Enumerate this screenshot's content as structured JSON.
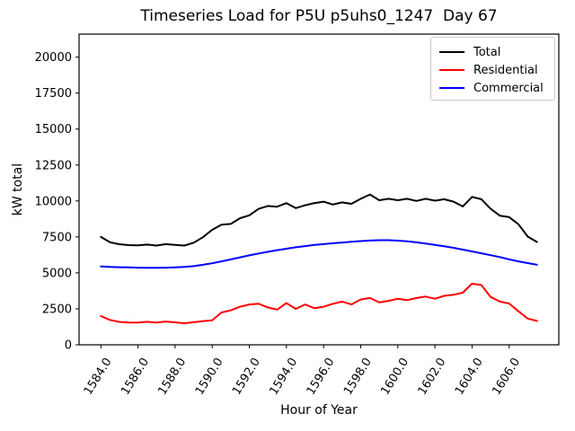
{
  "chart_data": {
    "type": "line",
    "title": "Timeseries Load for P5U p5uhs0_1247  Day 67",
    "xlabel": "Hour of Year",
    "ylabel": "kW total",
    "xlim": [
      1582.825,
      1608.675
    ],
    "ylim": [
      0,
      21600
    ],
    "grid": false,
    "xticks": [
      1584,
      1586,
      1588,
      1590,
      1592,
      1594,
      1596,
      1598,
      1600,
      1602,
      1604,
      1606
    ],
    "xtick_labels": [
      "1584.0",
      "1586.0",
      "1588.0",
      "1590.0",
      "1592.0",
      "1594.0",
      "1596.0",
      "1598.0",
      "1600.0",
      "1602.0",
      "1604.0",
      "1606.0"
    ],
    "yticks": [
      0,
      2500,
      5000,
      7500,
      10000,
      12500,
      15000,
      17500,
      20000
    ],
    "ytick_labels": [
      "0",
      "2500",
      "5000",
      "7500",
      "10000",
      "12500",
      "15000",
      "17500",
      "20000"
    ],
    "x": [
      1584.0,
      1584.5,
      1585.0,
      1585.5,
      1586.0,
      1586.5,
      1587.0,
      1587.5,
      1588.0,
      1588.5,
      1589.0,
      1589.5,
      1590.0,
      1590.5,
      1591.0,
      1591.5,
      1592.0,
      1592.5,
      1593.0,
      1593.5,
      1594.0,
      1594.5,
      1595.0,
      1595.5,
      1596.0,
      1596.5,
      1597.0,
      1597.5,
      1598.0,
      1598.5,
      1599.0,
      1599.5,
      1600.0,
      1600.5,
      1601.0,
      1601.5,
      1602.0,
      1602.5,
      1603.0,
      1603.5,
      1604.0,
      1604.5,
      1605.0,
      1605.5,
      1606.0,
      1606.5,
      1607.0,
      1607.5
    ],
    "series": [
      {
        "name": "Total",
        "color": "#000000",
        "values": [
          7500,
          7120,
          6990,
          6930,
          6920,
          6970,
          6900,
          7000,
          6950,
          6900,
          7100,
          7480,
          8000,
          8350,
          8400,
          8800,
          9000,
          9450,
          9650,
          9600,
          9850,
          9500,
          9700,
          9850,
          9950,
          9750,
          9900,
          9800,
          10150,
          10450,
          10050,
          10150,
          10050,
          10150,
          10000,
          10150,
          10020,
          10120,
          9950,
          9620,
          10280,
          10120,
          9450,
          8980,
          8880,
          8380,
          7520,
          7150
        ]
      },
      {
        "name": "Residential",
        "color": "#ff0000",
        "values": [
          2000,
          1720,
          1590,
          1550,
          1540,
          1600,
          1540,
          1620,
          1560,
          1500,
          1570,
          1650,
          1700,
          2250,
          2400,
          2650,
          2800,
          2850,
          2600,
          2450,
          2900,
          2500,
          2800,
          2550,
          2650,
          2850,
          3000,
          2800,
          3150,
          3250,
          2950,
          3050,
          3200,
          3100,
          3250,
          3350,
          3200,
          3400,
          3480,
          3620,
          4250,
          4150,
          3330,
          3000,
          2870,
          2330,
          1820,
          1660
        ]
      },
      {
        "name": "Commercial",
        "color": "#0000ff",
        "values": [
          5450,
          5415,
          5395,
          5380,
          5365,
          5355,
          5355,
          5365,
          5380,
          5410,
          5470,
          5560,
          5670,
          5800,
          5940,
          6080,
          6220,
          6350,
          6470,
          6580,
          6680,
          6780,
          6860,
          6940,
          7000,
          7060,
          7110,
          7160,
          7210,
          7250,
          7275,
          7270,
          7240,
          7190,
          7120,
          7040,
          6950,
          6850,
          6740,
          6620,
          6490,
          6360,
          6230,
          6100,
          5940,
          5800,
          5680,
          5570
        ]
      }
    ],
    "legend": {
      "position": "upper right",
      "entries": [
        {
          "label": "Total",
          "color": "#000000"
        },
        {
          "label": "Residential",
          "color": "#ff0000"
        },
        {
          "label": "Commercial",
          "color": "#0000ff"
        }
      ]
    }
  }
}
